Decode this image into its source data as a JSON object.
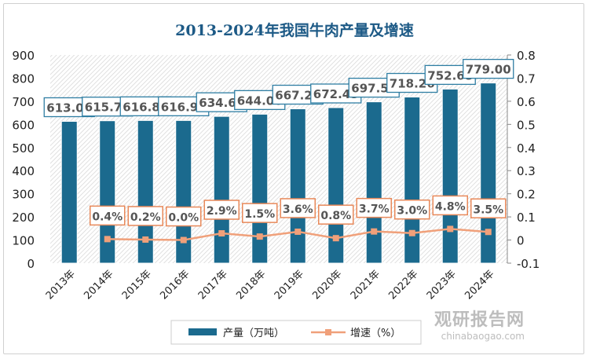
{
  "chart_data": {
    "type": "bar+line",
    "title": "2013-2024年我国牛肉产量及增速",
    "categories": [
      "2013年",
      "2014年",
      "2015年",
      "2016年",
      "2017年",
      "2018年",
      "2019年",
      "2020年",
      "2021年",
      "2022年",
      "2023年",
      "2024年"
    ],
    "series": [
      {
        "name": "产量（万吨）",
        "type": "bar",
        "axis": "left",
        "color": "#1b6a8e",
        "values": [
          613.09,
          615.72,
          616.89,
          616.91,
          634.62,
          644.06,
          667.28,
          672.45,
          697.51,
          718.26,
          752.68,
          779.0
        ],
        "labels": [
          "613.09",
          "615.72",
          "616.89",
          "616.91",
          "634.62",
          "644.06",
          "667.28",
          "672.45",
          "697.51",
          "718.26",
          "752.68",
          "779.00"
        ]
      },
      {
        "name": "增速（%）",
        "type": "line",
        "axis": "right",
        "color": "#f0a07a",
        "values": [
          null,
          0.004,
          0.002,
          0.0,
          0.029,
          0.015,
          0.036,
          0.008,
          0.037,
          0.03,
          0.048,
          0.035
        ],
        "labels": [
          "",
          "0.4%",
          "0.2%",
          "0.0%",
          "2.9%",
          "1.5%",
          "3.6%",
          "0.8%",
          "3.7%",
          "3.0%",
          "4.8%",
          "3.5%"
        ]
      }
    ],
    "left_axis": {
      "ylim": [
        0,
        900
      ],
      "ticks": [
        "0",
        "100",
        "200",
        "300",
        "400",
        "500",
        "600",
        "700",
        "800",
        "900"
      ]
    },
    "right_axis": {
      "ylim": [
        -0.1,
        0.8
      ],
      "ticks": [
        "-0.1",
        "0",
        "0.1",
        "0.2",
        "0.3",
        "0.4",
        "0.5",
        "0.6",
        "0.7",
        "0.8"
      ]
    },
    "legend": "bottom"
  },
  "watermark": {
    "name": "观研报告网",
    "url": "chinabaogao.com"
  }
}
